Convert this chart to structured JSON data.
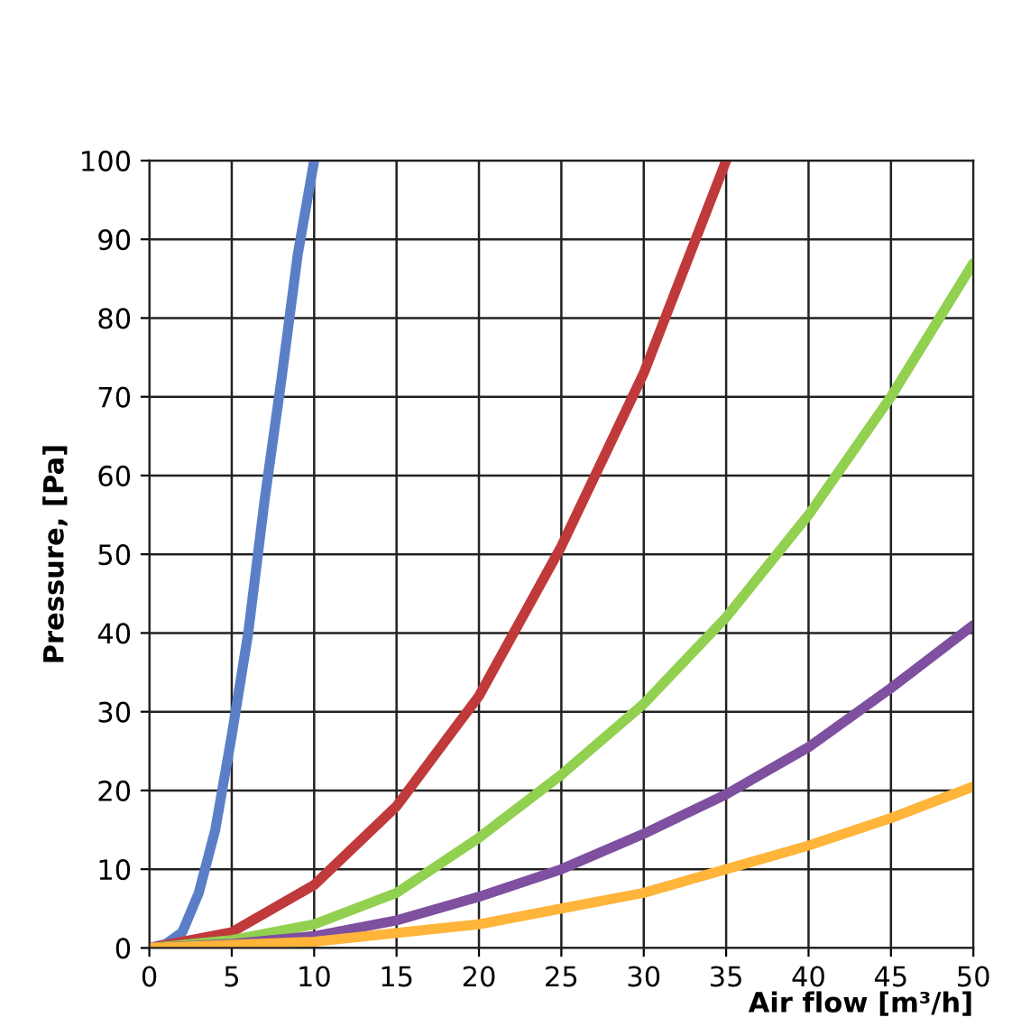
{
  "chart_data": {
    "type": "line",
    "xlabel": "Air flow [m³/h]",
    "ylabel": "Pressure, [Pa]",
    "xlim": [
      0,
      50
    ],
    "ylim": [
      0,
      100
    ],
    "xticks": [
      0,
      5,
      10,
      15,
      20,
      25,
      30,
      35,
      40,
      45,
      50
    ],
    "yticks": [
      0,
      10,
      20,
      30,
      40,
      50,
      60,
      70,
      80,
      90,
      100
    ],
    "grid": true,
    "marker": "none",
    "line_style": "solid",
    "series": [
      {
        "color": "#5b7fc7",
        "x": [
          0,
          1,
          2,
          3,
          4,
          5,
          6,
          7,
          8,
          9,
          10
        ],
        "values": [
          0,
          0.5,
          2,
          7,
          15,
          27,
          40,
          57,
          72,
          88,
          100
        ]
      },
      {
        "color": "#c0393b",
        "x": [
          0,
          5,
          10,
          15,
          20,
          25,
          30,
          35
        ],
        "values": [
          0,
          2,
          8,
          18,
          32,
          51,
          73,
          100
        ]
      },
      {
        "color": "#92d050",
        "x": [
          0,
          5,
          10,
          15,
          20,
          25,
          30,
          35,
          40,
          45,
          50
        ],
        "values": [
          0,
          1,
          3,
          7,
          14,
          22,
          31,
          42,
          55,
          70,
          87
        ]
      },
      {
        "color": "#7f4fa0",
        "x": [
          0,
          5,
          10,
          15,
          20,
          25,
          30,
          35,
          40,
          45,
          50
        ],
        "values": [
          0,
          0.5,
          1.5,
          3.5,
          6.5,
          10,
          14.5,
          19.5,
          25.5,
          33,
          41
        ]
      },
      {
        "color": "#ffb43a",
        "x": [
          0,
          10,
          20,
          25,
          30,
          35,
          40,
          45,
          50
        ],
        "values": [
          0,
          0.8,
          3,
          5,
          7,
          10,
          13,
          16.5,
          20.5
        ]
      }
    ]
  }
}
